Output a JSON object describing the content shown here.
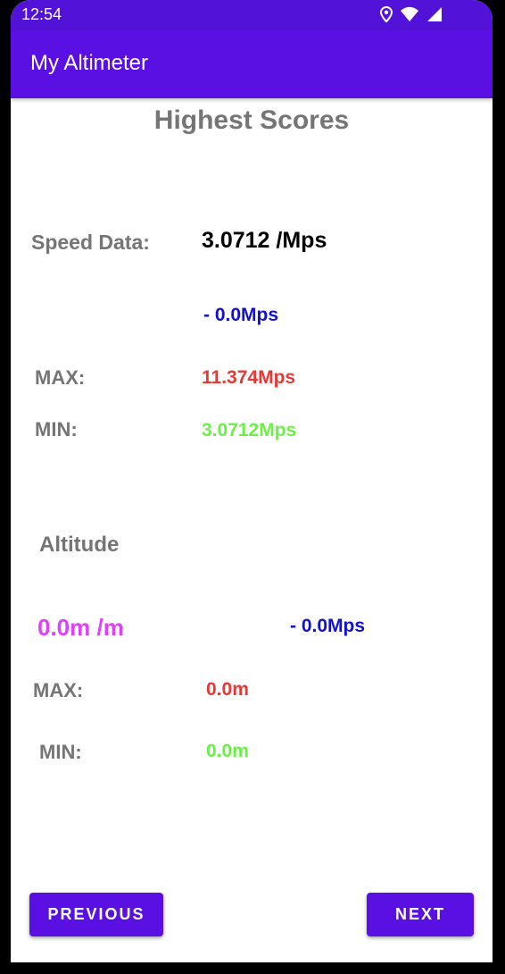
{
  "status_bar": {
    "time": "12:54",
    "icons": [
      "location-icon",
      "wifi-icon",
      "signal-icon"
    ]
  },
  "app_bar": {
    "title": "My Altimeter"
  },
  "heading": "Highest Scores",
  "speed": {
    "label": "Speed Data:",
    "current": "3.0712 /Mps",
    "delta": "- 0.0Mps",
    "max_label": "MAX:",
    "max_value": "11.374Mps",
    "min_label": "MIN:",
    "min_value": "3.0712Mps"
  },
  "altitude": {
    "label": "Altitude",
    "current": "0.0m /m",
    "delta": "- 0.0Mps",
    "max_label": "MAX:",
    "max_value": "0.0m",
    "min_label": "MIN:",
    "min_value": "0.0m"
  },
  "buttons": {
    "previous": "PREVIOUS",
    "next": "NEXT"
  },
  "colors": {
    "primary": "#5a10e3",
    "status_bar": "#5312d8",
    "label_gray": "#757575",
    "delta_blue": "#1212cc",
    "max_red": "#e53935",
    "min_green": "#6cf048",
    "altitude_magenta": "#e040fb"
  }
}
